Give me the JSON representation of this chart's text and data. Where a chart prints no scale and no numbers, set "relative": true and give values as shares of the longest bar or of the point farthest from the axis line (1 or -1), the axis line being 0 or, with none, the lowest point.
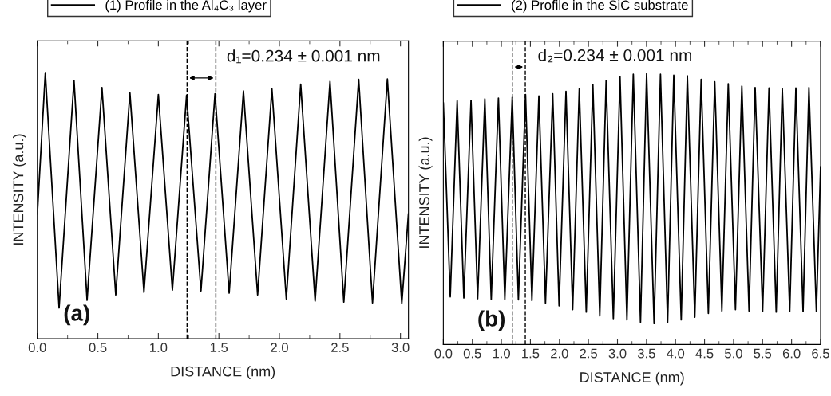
{
  "chart_data": [
    {
      "type": "line",
      "relative": true,
      "xlabel": "DISTANCE (nm)",
      "ylabel": "INTENSITY (a.u.)",
      "xlim": [
        0,
        3.066
      ],
      "xticks": [
        {
          "value": 0,
          "label": "0.0"
        },
        {
          "value": 0.5,
          "label": "0.5"
        },
        {
          "value": 1,
          "label": "1.0"
        },
        {
          "value": 1.5,
          "label": "1.5"
        },
        {
          "value": 2,
          "label": "2.0"
        },
        {
          "value": 2.5,
          "label": "2.5"
        },
        {
          "value": 3,
          "label": "3.0"
        }
      ],
      "tick_labels": "x",
      "legend": "top left",
      "grid": false,
      "marker": "none",
      "line_style": "solid",
      "series": [
        {
          "name": "(1) Profile in the Al₄C₃ layer",
          "color": "#000000",
          "x": [
            0,
            0.066,
            0.18,
            0.303,
            0.411,
            0.534,
            0.648,
            0.765,
            0.881,
            1.0,
            1.116,
            1.233,
            1.352,
            1.468,
            1.585,
            1.703,
            1.82,
            1.938,
            2.057,
            2.176,
            2.295,
            2.418,
            2.532,
            2.655,
            2.769,
            2.892,
            3.011,
            3.066
          ],
          "values": [
            0.468,
            1.0,
            0.115,
            0.971,
            0.144,
            0.944,
            0.164,
            0.924,
            0.174,
            0.918,
            0.182,
            0.915,
            0.179,
            0.921,
            0.171,
            0.931,
            0.164,
            0.939,
            0.149,
            0.957,
            0.141,
            0.967,
            0.137,
            0.975,
            0.134,
            0.976,
            0.132,
            0.47
          ]
        }
      ],
      "ref_lines": [
        {
          "axis": "x",
          "value": 1.237,
          "line_style": "dashed",
          "color": "#000000"
        },
        {
          "axis": "x",
          "value": 1.475,
          "line_style": "dashed",
          "color": "#000000"
        }
      ],
      "annotations": [
        "d₁=0.234 ± 0.001 nm",
        "(a)"
      ]
    },
    {
      "type": "line",
      "relative": true,
      "xlabel": "DISTANCE (nm)",
      "ylabel": "INTENSITY (a.u.)",
      "xlim": [
        0,
        6.5
      ],
      "xticks": [
        {
          "value": 0,
          "label": "0.0"
        },
        {
          "value": 0.5,
          "label": "0.5"
        },
        {
          "value": 1,
          "label": "1.0"
        },
        {
          "value": 1.5,
          "label": "1.5"
        },
        {
          "value": 2,
          "label": "2.0"
        },
        {
          "value": 2.5,
          "label": "2.5"
        },
        {
          "value": 3,
          "label": "3.0"
        },
        {
          "value": 3.5,
          "label": "3.5"
        },
        {
          "value": 4,
          "label": "4.0"
        },
        {
          "value": 4.5,
          "label": "4.5"
        },
        {
          "value": 5,
          "label": "5.0"
        },
        {
          "value": 5.5,
          "label": "5.5"
        },
        {
          "value": 6,
          "label": "6.0"
        },
        {
          "value": 6.5,
          "label": "6.5"
        }
      ],
      "tick_labels": "x",
      "legend": "top left",
      "grid": false,
      "marker": "none",
      "line_style": "solid",
      "series": [
        {
          "name": "(2) Profile in the SiC substrate",
          "color": "#000000",
          "x": [
            0,
            0.119,
            0.238,
            0.353,
            0.477,
            0.591,
            0.715,
            0.825,
            0.949,
            1.059,
            1.187,
            1.293,
            1.416,
            1.526,
            1.646,
            1.76,
            1.884,
            1.994,
            2.113,
            2.228,
            2.342,
            2.462,
            2.576,
            2.695,
            2.805,
            2.929,
            3.044,
            3.163,
            3.273,
            3.397,
            3.502,
            3.631,
            3.741,
            3.864,
            3.97,
            4.098,
            4.204,
            4.332,
            4.442,
            4.566,
            4.676,
            4.799,
            4.909,
            5.033,
            5.143,
            5.267,
            5.372,
            5.501,
            5.611,
            5.735,
            5.84,
            5.968,
            6.074,
            6.198,
            6.299,
            6.427,
            6.5
          ],
          "values": [
            0.893,
            0.176,
            0.9,
            0.172,
            0.902,
            0.169,
            0.907,
            0.167,
            0.91,
            0.167,
            0.913,
            0.165,
            0.923,
            0.162,
            0.918,
            0.153,
            0.926,
            0.143,
            0.935,
            0.129,
            0.944,
            0.12,
            0.96,
            0.106,
            0.975,
            0.096,
            0.989,
            0.091,
            0.998,
            0.082,
            1.0,
            0.077,
            0.998,
            0.082,
            0.994,
            0.091,
            0.992,
            0.101,
            0.979,
            0.115,
            0.97,
            0.124,
            0.963,
            0.129,
            0.954,
            0.124,
            0.949,
            0.122,
            0.947,
            0.12,
            0.945,
            0.122,
            0.947,
            0.122,
            0.949,
            0.122,
            0.657
          ]
        }
      ],
      "ref_lines": [
        {
          "axis": "x",
          "value": 1.187,
          "line_style": "dashed",
          "color": "#000000"
        },
        {
          "axis": "x",
          "value": 1.412,
          "line_style": "dashed",
          "color": "#000000"
        }
      ],
      "annotations": [
        "d₂=0.234 ± 0.001 nm",
        "(b)"
      ]
    }
  ]
}
